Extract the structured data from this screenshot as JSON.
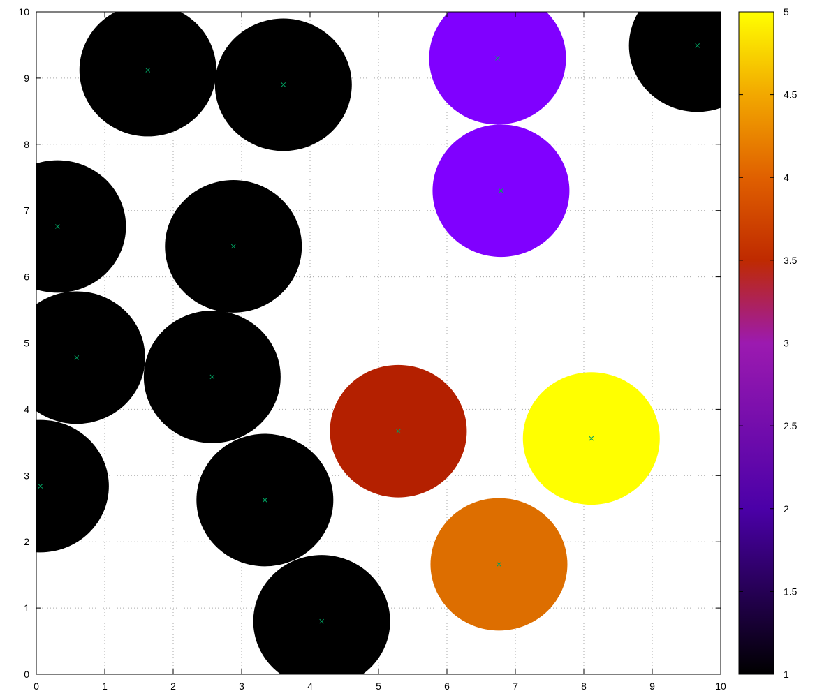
{
  "chart_data": {
    "type": "scatter",
    "title": "",
    "xlabel": "",
    "ylabel": "",
    "xlim": [
      0,
      10
    ],
    "ylim": [
      0,
      10
    ],
    "x_ticks": [
      0,
      1,
      2,
      3,
      4,
      5,
      6,
      7,
      8,
      9,
      10
    ],
    "y_ticks": [
      0,
      1,
      2,
      3,
      4,
      5,
      6,
      7,
      8,
      9,
      10
    ],
    "grid": true,
    "marker_color": "#00a060",
    "circle_radius": 1,
    "colorbar": {
      "range": [
        1,
        5
      ],
      "ticks": [
        "1",
        "1.5",
        "2",
        "2.5",
        "3",
        "3.5",
        "4",
        "4.5",
        "5"
      ],
      "colormap": "gnuplot (black-purple-red-orange-yellow)"
    },
    "points": [
      {
        "x": 1.63,
        "y": 9.12,
        "value": 1
      },
      {
        "x": 3.61,
        "y": 8.9,
        "value": 1
      },
      {
        "x": 6.74,
        "y": 9.3,
        "value": 2
      },
      {
        "x": 9.66,
        "y": 9.49,
        "value": 1
      },
      {
        "x": 6.79,
        "y": 7.3,
        "value": 2
      },
      {
        "x": 0.31,
        "y": 6.76,
        "value": 1
      },
      {
        "x": 2.88,
        "y": 6.46,
        "value": 1
      },
      {
        "x": 0.59,
        "y": 4.78,
        "value": 1
      },
      {
        "x": 2.57,
        "y": 4.49,
        "value": 1
      },
      {
        "x": 5.29,
        "y": 3.67,
        "value": 3
      },
      {
        "x": 8.11,
        "y": 3.56,
        "value": 5
      },
      {
        "x": 0.06,
        "y": 2.84,
        "value": 1
      },
      {
        "x": 3.34,
        "y": 2.63,
        "value": 1
      },
      {
        "x": 6.76,
        "y": 1.66,
        "value": 4
      },
      {
        "x": 4.17,
        "y": 0.8,
        "value": 1
      }
    ]
  }
}
